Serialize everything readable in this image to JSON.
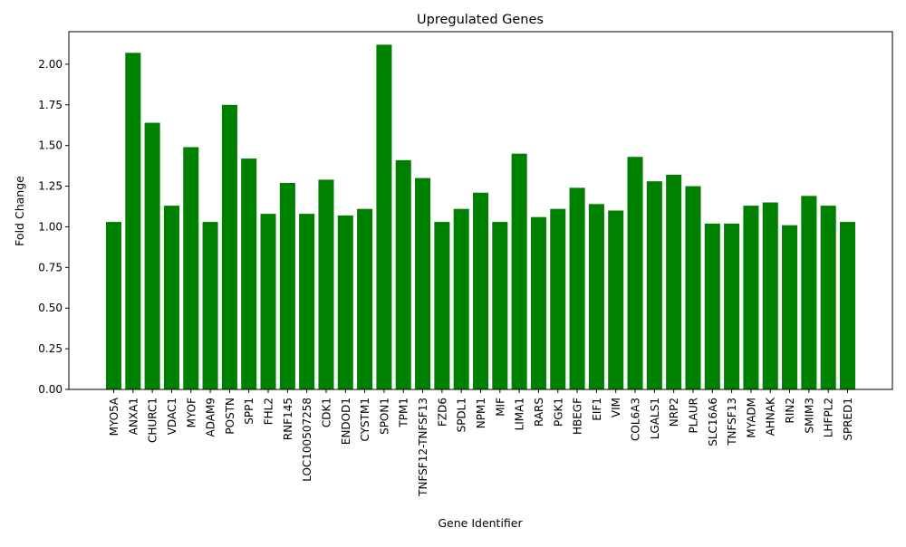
{
  "chart_data": {
    "type": "bar",
    "title": "Upregulated Genes",
    "xlabel": "Gene Identifier",
    "ylabel": "Fold Change",
    "ylim": [
      0,
      2.2
    ],
    "yticks": [
      "0.00",
      "0.25",
      "0.50",
      "0.75",
      "1.00",
      "1.25",
      "1.50",
      "1.75",
      "2.00"
    ],
    "bar_color": "#008000",
    "grid": false,
    "categories": [
      "MYO5A",
      "ANXA1",
      "CHURC1",
      "VDAC1",
      "MYOF",
      "ADAM9",
      "POSTN",
      "SPP1",
      "FHL2",
      "RNF145",
      "LOC100507258",
      "CDK1",
      "ENDOD1",
      "CYSTM1",
      "SPON1",
      "TPM1",
      "TNFSF12-TNFSF13",
      "FZD6",
      "SPDL1",
      "NPM1",
      "MIF",
      "LIMA1",
      "RARS",
      "PGK1",
      "HBEGF",
      "EIF1",
      "VIM",
      "COL6A3",
      "LGALS1",
      "NRP2",
      "PLAUR",
      "SLC16A6",
      "TNFSF13",
      "MYADM",
      "AHNAK",
      "RIN2",
      "SMIM3",
      "LHFPL2",
      "SPRED1"
    ],
    "values": [
      1.03,
      2.07,
      1.64,
      1.13,
      1.49,
      1.03,
      1.75,
      1.42,
      1.08,
      1.27,
      1.08,
      1.29,
      1.07,
      1.11,
      2.12,
      1.41,
      1.3,
      1.03,
      1.11,
      1.21,
      1.03,
      1.45,
      1.06,
      1.11,
      1.24,
      1.14,
      1.1,
      1.43,
      1.28,
      1.32,
      1.25,
      1.02,
      1.02,
      1.13,
      1.15,
      1.01,
      1.19,
      1.13,
      1.03
    ]
  }
}
